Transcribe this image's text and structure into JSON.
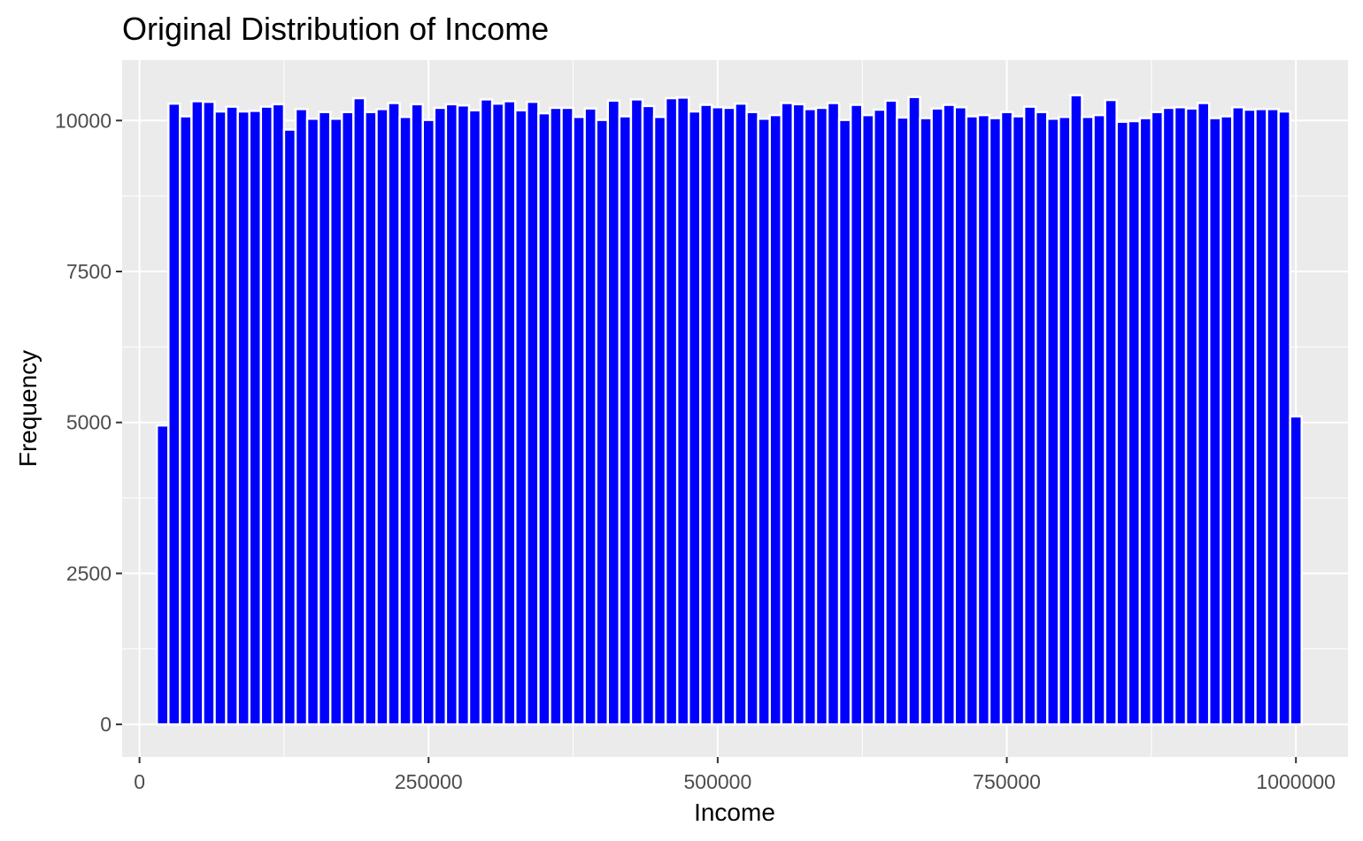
{
  "chart_data": {
    "type": "bar",
    "title": "Original Distribution of Income",
    "xlabel": "Income",
    "ylabel": "Frequency",
    "xlim": [
      -15000,
      1045000
    ],
    "ylim": [
      -540,
      11000
    ],
    "x_ticks": [
      0,
      250000,
      500000,
      750000,
      1000000
    ],
    "x_tick_labels": [
      "0",
      "250000",
      "500000",
      "750000",
      "1000000"
    ],
    "y_ticks": [
      0,
      2500,
      5000,
      7500,
      10000
    ],
    "y_tick_labels": [
      "0",
      "2500",
      "5000",
      "7500",
      "10000"
    ],
    "grid": true,
    "bin_width": 10000,
    "bin_start": 15000,
    "bar_fill": "#0000ff",
    "bar_outline": "#ffffff",
    "panel_background": "#ebebeb",
    "values": [
      4950,
      10280,
      10070,
      10320,
      10310,
      10150,
      10230,
      10150,
      10160,
      10230,
      10270,
      9850,
      10190,
      10030,
      10140,
      10030,
      10140,
      10370,
      10140,
      10190,
      10290,
      10060,
      10270,
      10010,
      10210,
      10270,
      10250,
      10170,
      10350,
      10280,
      10320,
      10170,
      10310,
      10120,
      10210,
      10210,
      10060,
      10200,
      10010,
      10330,
      10070,
      10350,
      10240,
      10060,
      10370,
      10380,
      10150,
      10260,
      10220,
      10210,
      10280,
      10140,
      10030,
      10090,
      10290,
      10270,
      10190,
      10210,
      10290,
      10010,
      10260,
      10090,
      10180,
      10330,
      10050,
      10390,
      10040,
      10200,
      10260,
      10220,
      10070,
      10090,
      10040,
      10140,
      10070,
      10230,
      10140,
      10030,
      10060,
      10420,
      10060,
      10090,
      10340,
      9980,
      9990,
      10040,
      10140,
      10210,
      10220,
      10200,
      10290,
      10040,
      10070,
      10220,
      10180,
      10190,
      10190,
      10150,
      5100
    ]
  }
}
